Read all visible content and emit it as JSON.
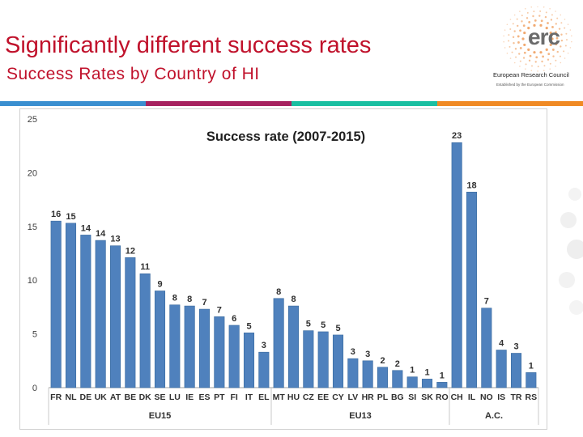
{
  "slide": {
    "title": "Significantly different success rates",
    "subtitle": "Success Rates by Country of HI"
  },
  "logo": {
    "mark": "erc",
    "organization": "European Research Council",
    "tagline": "Established by the European Commission"
  },
  "colors": {
    "title": "#c0112b",
    "bar": "#4f81bd",
    "stripe": [
      "#3a8fd0",
      "#a6215f",
      "#1abfa1",
      "#f08a24"
    ],
    "logo_dots": "#f0a060"
  },
  "chart_data": {
    "type": "bar",
    "title": "Success rate (2007-2015)",
    "categories": [
      "FR",
      "NL",
      "DE",
      "UK",
      "AT",
      "BE",
      "DK",
      "SE",
      "LU",
      "IE",
      "ES",
      "PT",
      "FI",
      "IT",
      "EL",
      "MT",
      "HU",
      "CZ",
      "EE",
      "CY",
      "LV",
      "HR",
      "PL",
      "BG",
      "SI",
      "SK",
      "RO",
      "CH",
      "IL",
      "NO",
      "IS",
      "TR",
      "RS"
    ],
    "values": [
      15.5,
      15.3,
      14.2,
      13.7,
      13.2,
      12.1,
      10.6,
      9.0,
      7.7,
      7.6,
      7.3,
      6.6,
      5.8,
      5.1,
      3.3,
      8.3,
      7.6,
      5.3,
      5.2,
      4.9,
      2.7,
      2.5,
      1.9,
      1.6,
      1.0,
      0.8,
      0.5,
      22.8,
      18.2,
      7.4,
      3.5,
      3.2,
      1.4
    ],
    "data_labels": [
      "16",
      "15",
      "14",
      "14",
      "13",
      "12",
      "11",
      "9",
      "8",
      "8",
      "7",
      "7",
      "6",
      "5",
      "3",
      "8",
      "8",
      "5",
      "5",
      "5",
      "3",
      "3",
      "2",
      "2",
      "1",
      "1",
      "1",
      "23",
      "18",
      "7",
      "4",
      "3",
      "1"
    ],
    "groups": [
      {
        "label": "EU15",
        "start": 0,
        "end": 14
      },
      {
        "label": "EU13",
        "start": 15,
        "end": 26
      },
      {
        "label": "A.C.",
        "start": 27,
        "end": 32
      }
    ],
    "ylim": [
      0,
      25
    ],
    "yticks": [
      0,
      5,
      10,
      15,
      20,
      25
    ],
    "grid": false,
    "xlabel": "",
    "ylabel": ""
  }
}
